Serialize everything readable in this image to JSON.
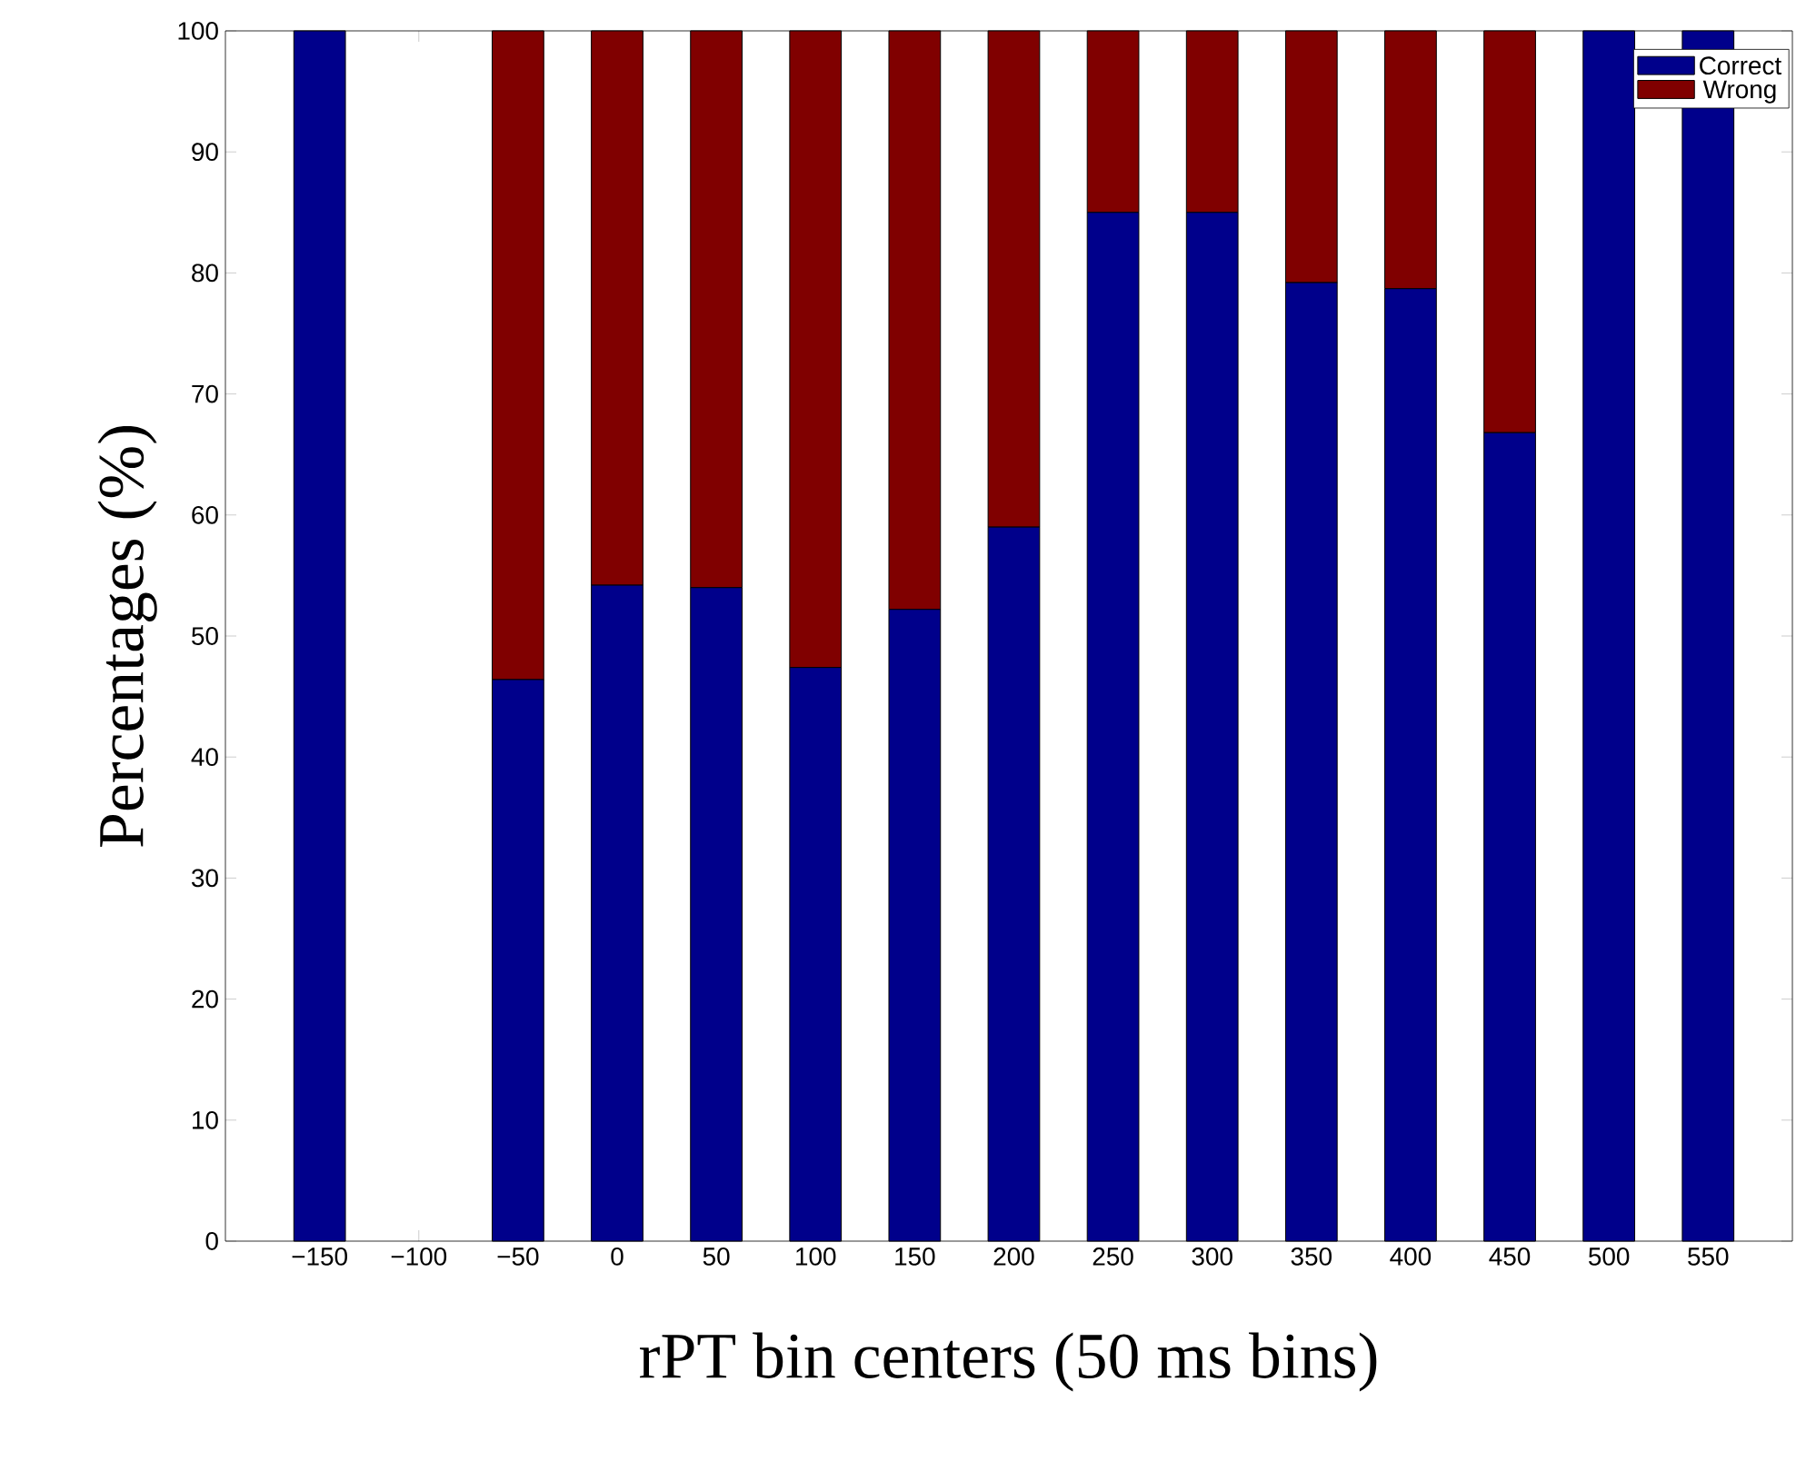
{
  "chart_data": {
    "type": "bar",
    "stacked": true,
    "xlabel": "rPT bin centers (50 ms bins)",
    "ylabel": "Percentages (%)",
    "categories": [
      "−150",
      "−100",
      "−50",
      "0",
      "50",
      "100",
      "150",
      "200",
      "250",
      "300",
      "350",
      "400",
      "450",
      "500",
      "550"
    ],
    "series": [
      {
        "name": "Correct",
        "color": "#00008b",
        "values": [
          100,
          null,
          46.4,
          54.2,
          54.0,
          47.4,
          52.2,
          59.0,
          85.0,
          85.0,
          79.2,
          78.7,
          66.8,
          100,
          100
        ]
      },
      {
        "name": "Wrong",
        "color": "#800000",
        "values": [
          0,
          null,
          53.6,
          45.8,
          46.0,
          52.6,
          47.8,
          41.0,
          15.0,
          15.0,
          20.8,
          21.3,
          33.2,
          0,
          0
        ]
      }
    ],
    "ylim": [
      0,
      100
    ],
    "yticks": [
      0,
      10,
      20,
      30,
      40,
      50,
      60,
      70,
      80,
      90,
      100
    ],
    "grid": false,
    "legend": "top right"
  }
}
